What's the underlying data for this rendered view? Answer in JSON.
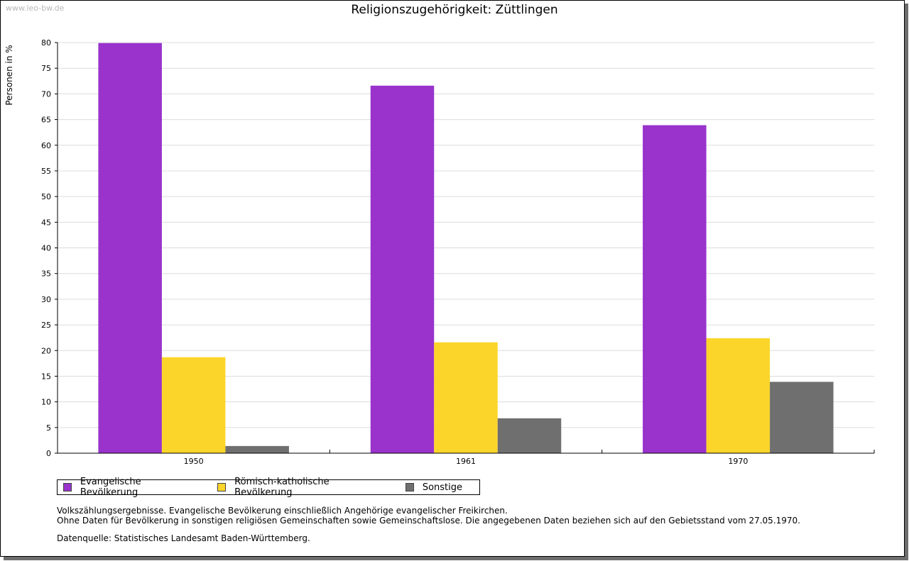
{
  "watermark": "www.leo-bw.de",
  "chart_data": {
    "type": "bar",
    "title": "Religionszugehörigkeit: Züttlingen",
    "xlabel": "",
    "ylabel": "Personen in %",
    "categories": [
      "1950",
      "1961",
      "1970"
    ],
    "series": [
      {
        "name": "Evangelische Bevölkerung",
        "color": "#9933cc",
        "values": [
          79.9,
          71.6,
          63.9
        ]
      },
      {
        "name": "Römisch-katholische Bevölkerung",
        "color": "#fcd52a",
        "values": [
          18.7,
          21.6,
          22.4
        ]
      },
      {
        "name": "Sonstige",
        "color": "#6f6f6f",
        "values": [
          1.4,
          6.8,
          13.9
        ]
      }
    ],
    "ylim": [
      0,
      80
    ],
    "yticks": [
      "0",
      "5",
      "10",
      "15",
      "20",
      "25",
      "30",
      "35",
      "40",
      "45",
      "50",
      "55",
      "60",
      "65",
      "70",
      "75",
      "80"
    ],
    "grid": true,
    "legend": "bottom-left"
  },
  "notes": {
    "line1": "Volkszählungsergebnisse. Evangelische Bevölkerung einschließlich Angehörige evangelischer Freikirchen.",
    "line2": "Ohne Daten für Bevölkerung in sonstigen religiösen Gemeinschaften sowie Gemeinschaftslose. Die angegebenen Daten beziehen sich auf den Gebietsstand vom 27.05.1970."
  },
  "source": "Datenquelle: Statistisches Landesamt Baden-Württemberg."
}
